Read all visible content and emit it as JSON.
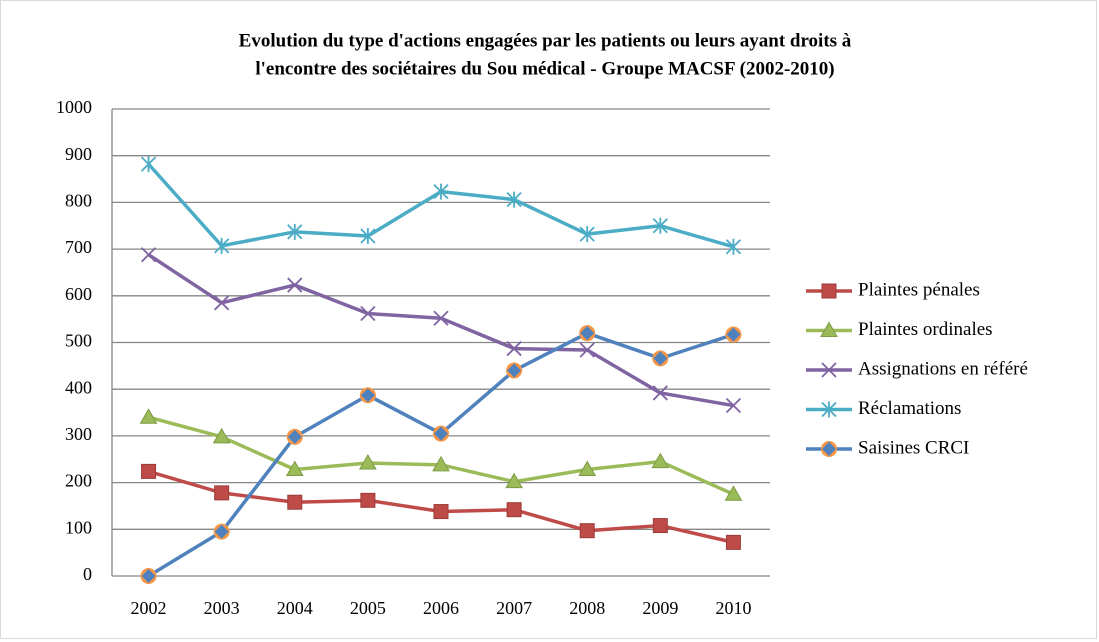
{
  "chart_data": {
    "type": "line",
    "title": [
      "Evolution du type d'actions engagées par les patients ou leurs ayant droits à",
      "l'encontre des sociétaires du Sou médical - Groupe MACSF (2002-2010)"
    ],
    "categories": [
      "2002",
      "2003",
      "2004",
      "2005",
      "2006",
      "2007",
      "2008",
      "2009",
      "2010"
    ],
    "series": [
      {
        "name": "Plaintes pénales",
        "color": "#be4b48",
        "marker": "square",
        "values": [
          224,
          178,
          158,
          162,
          138,
          142,
          97,
          108,
          72
        ]
      },
      {
        "name": "Plaintes ordinales",
        "color": "#9bbb59",
        "marker": "triangle",
        "values": [
          340,
          298,
          228,
          242,
          238,
          202,
          228,
          245,
          175
        ]
      },
      {
        "name": "Assignations en référé",
        "color": "#8064a2",
        "marker": "x",
        "values": [
          688,
          585,
          623,
          562,
          552,
          487,
          484,
          392,
          365
        ]
      },
      {
        "name": "Réclamations",
        "color": "#4bacc6",
        "marker": "star",
        "values": [
          882,
          707,
          737,
          728,
          823,
          806,
          732,
          750,
          705
        ]
      },
      {
        "name": "Saisines CRCI",
        "color": "#4f81bd",
        "marker": "diamond",
        "values": [
          0,
          95,
          298,
          387,
          305,
          440,
          520,
          466,
          517
        ]
      }
    ],
    "ylim": [
      0,
      1000
    ],
    "yticks": [
      0,
      100,
      200,
      300,
      400,
      500,
      600,
      700,
      800,
      900,
      1000
    ],
    "grid": true,
    "legend": "right"
  }
}
